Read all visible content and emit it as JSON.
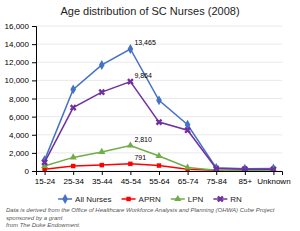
{
  "chart_data": {
    "type": "line",
    "title": "Age distribution of SC Nurses (2008)",
    "categories": [
      "15-24",
      "25-34",
      "35-44",
      "45-54",
      "55-64",
      "65-74",
      "75-84",
      "85+",
      "Unknown"
    ],
    "series": [
      {
        "name": "All Nurses",
        "color": "#4472C4",
        "marker": "diamond",
        "values": [
          1200,
          9000,
          11700,
          13465,
          7800,
          5100,
          350,
          250,
          280
        ]
      },
      {
        "name": "APRN",
        "color": "#FF0000",
        "marker": "square",
        "values": [
          200,
          550,
          650,
          791,
          600,
          200,
          80,
          50,
          150
        ]
      },
      {
        "name": "LPN",
        "color": "#70AD47",
        "marker": "triangle",
        "values": [
          550,
          1500,
          2100,
          2810,
          1650,
          380,
          90,
          50,
          80
        ]
      },
      {
        "name": "RN",
        "color": "#7030A0",
        "marker": "x",
        "values": [
          950,
          7000,
          8700,
          9864,
          5400,
          4500,
          270,
          200,
          180
        ]
      }
    ],
    "annotations": [
      {
        "text": "13,465",
        "x": "45-54",
        "y": 13465
      },
      {
        "text": "9,864",
        "x": "45-54",
        "y": 9864
      },
      {
        "text": "2,810",
        "x": "45-54",
        "y": 2810
      },
      {
        "text": "791",
        "x": "45-54",
        "y": 791
      }
    ],
    "ylim": [
      0,
      16000
    ],
    "yticks": [
      0,
      {
        "value": 2000,
        "label": "2,000"
      },
      {
        "value": 4000,
        "label": "4,000"
      },
      {
        "value": 6000,
        "label": "6,000"
      },
      {
        "value": 8000,
        "label": "8,000"
      },
      {
        "value": 10000,
        "label": "10,000"
      },
      {
        "value": 12000,
        "label": "12,000"
      },
      {
        "value": 14000,
        "label": "14,000"
      },
      {
        "value": 16000,
        "label": "16,000"
      }
    ],
    "grid": true,
    "legend": "bottom",
    "footnote": "Data is derived from the Office of Healthcare Workforce Analysis and Planning (OHWA) Cube Project sponsored by a grant\nfrom The Duke Endowment."
  }
}
